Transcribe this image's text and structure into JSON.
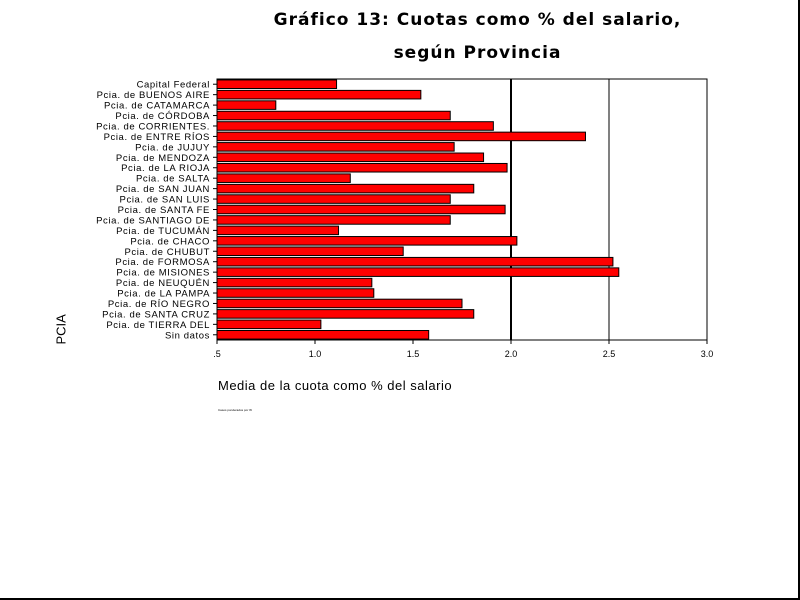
{
  "chart_data": {
    "type": "bar",
    "orientation": "horizontal",
    "title": "Gráfico 13: Cuotas como % del salario,",
    "subtitle": "según Provincia",
    "xlabel": "Media de la cuota como % del salario",
    "ylabel": "PCIA",
    "footnote": "Casos ponderados por W",
    "xlim": [
      0.5,
      3.0
    ],
    "xticks": [
      ".5",
      "1.0",
      "1.5",
      "2.0",
      "2.5",
      "3.0"
    ],
    "grid_x": [
      2.0,
      2.5
    ],
    "bar_color": "#ff0000",
    "categories": [
      "Capital Federal",
      "Pcia. de BUENOS AIRE",
      "Pcia. de CATAMARCA",
      "Pcia. de CÓRDOBA",
      "Pcia. de CORRIENTES.",
      "Pcia. de ENTRE RÍOS",
      "Pcia. de JUJUY",
      "Pcia. de MENDOZA",
      "Pcia. de LA RIOJA",
      "Pcia. de SALTA",
      "Pcia. de SAN JUAN",
      "Pcia. de SAN LUIS",
      "Pcia. de SANTA FE",
      "Pcia. de SANTIAGO DE",
      "Pcia. de TUCUMÁN",
      "Pcia. de CHACO",
      "Pcia. de CHUBUT",
      "Pcia. de FORMOSA",
      "Pcia. de MISIONES",
      "Pcia. de NEUQUÉN",
      "Pcia. de LA PAMPA",
      "Pcia. de RÍO NEGRO",
      "Pcia. de SANTA CRUZ",
      "Pcia. de TIERRA DEL",
      "Sin datos"
    ],
    "values": [
      1.11,
      1.54,
      0.8,
      1.69,
      1.91,
      2.38,
      1.71,
      1.86,
      1.98,
      1.18,
      1.81,
      1.69,
      1.97,
      1.69,
      1.12,
      2.03,
      1.45,
      2.52,
      2.55,
      1.29,
      1.3,
      1.75,
      1.81,
      1.03,
      1.58
    ]
  }
}
